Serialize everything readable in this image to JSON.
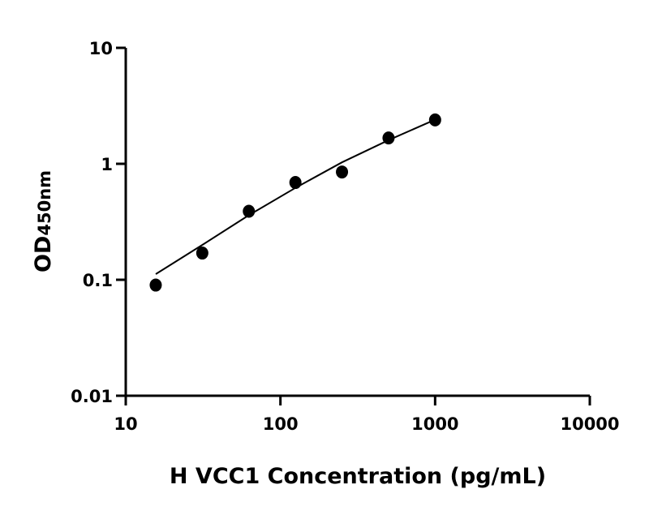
{
  "chart_data": {
    "type": "scatter",
    "title": "",
    "xlabel": "H VCC1 Concentration (pg/mL)",
    "ylabel_main": "OD",
    "ylabel_sub": "450nm",
    "xscale": "log",
    "yscale": "log",
    "xlim": [
      10,
      10000
    ],
    "ylim": [
      0.01,
      10
    ],
    "xticks": [
      10,
      100,
      1000,
      10000
    ],
    "xtick_labels": [
      "10",
      "100",
      "1000",
      "10000"
    ],
    "yticks": [
      0.01,
      0.1,
      1,
      10
    ],
    "ytick_labels": [
      "0.01",
      "0.1",
      "1",
      "10"
    ],
    "grid": false,
    "legend": "none",
    "points": {
      "x": [
        15.625,
        31.25,
        62.5,
        125,
        250,
        500,
        1000
      ],
      "y": [
        0.09,
        0.17,
        0.39,
        0.69,
        0.85,
        1.67,
        2.39
      ]
    },
    "fit_curve": {
      "x": [
        15.625,
        31.25,
        62.5,
        125,
        250,
        500,
        1000
      ],
      "y": [
        0.112,
        0.2,
        0.36,
        0.62,
        1.03,
        1.6,
        2.4
      ]
    },
    "color": "#000000"
  }
}
